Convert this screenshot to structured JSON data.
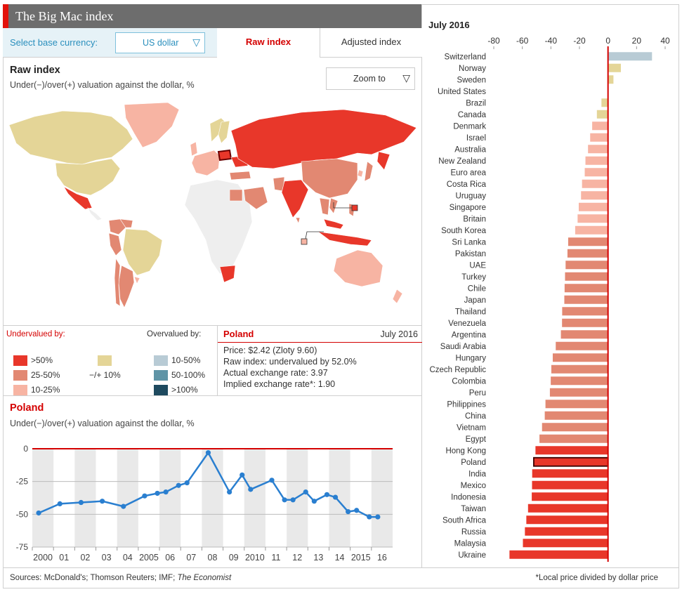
{
  "header": {
    "title": "The Big Mac index"
  },
  "currency": {
    "label": "Select base currency:",
    "value": "US dollar"
  },
  "tabs": [
    {
      "label": "Raw index",
      "active": true
    },
    {
      "label": "Adjusted index",
      "active": false
    }
  ],
  "map": {
    "title": "Raw index",
    "subtitle": "Under(−)/over(+) valuation against the dollar, %",
    "zoom_label": "Zoom to"
  },
  "legend": {
    "undervalued_label": "Undervalued by:",
    "overvalued_label": "Overvalued by:",
    "neutral_label": "−/+ 10%",
    "under": [
      {
        "label": ">50%",
        "color": "#e8372a"
      },
      {
        "label": "25-50%",
        "color": "#e28872"
      },
      {
        "label": "10-25%",
        "color": "#f7b4a3"
      }
    ],
    "neutral_color": "#e4d597",
    "over": [
      {
        "label": "10-50%",
        "color": "#b8cbd5"
      },
      {
        "label": "50-100%",
        "color": "#5f94a6"
      },
      {
        "label": ">100%",
        "color": "#1e4a5f"
      }
    ]
  },
  "info": {
    "country": "Poland",
    "date": "July 2016",
    "lines": [
      "Price: $2.42 (Zloty 9.60)",
      "Raw index: undervalued by 52.0%",
      "Actual exchange rate: 3.97",
      "Implied exchange rate*: 1.90"
    ]
  },
  "timeseries": {
    "title": "Poland",
    "subtitle": "Under(−)/over(+) valuation against the dollar, %"
  },
  "footer": {
    "sources_prefix": "Sources: McDonald's; Thomson Reuters; IMF; ",
    "sources_italic": "The Economist",
    "note": "*Local price divided by dollar price"
  },
  "colors": {
    "accent": "#e3120b",
    "line": "#2a7fd0",
    "highlight": "#d40000"
  },
  "chart_data": [
    {
      "type": "line",
      "title": "Poland",
      "ylim": [
        -75,
        0
      ],
      "yticks": [
        0,
        -25,
        -50,
        -75
      ],
      "xticks": [
        "2000",
        "01",
        "02",
        "03",
        "04",
        "2005",
        "06",
        "07",
        "08",
        "09",
        "2010",
        "11",
        "12",
        "13",
        "14",
        "2015",
        "16"
      ],
      "x": [
        2000.3,
        2001.3,
        2002.3,
        2003.3,
        2004.3,
        2005.3,
        2005.9,
        2006.3,
        2006.9,
        2007.3,
        2008.3,
        2009.3,
        2009.9,
        2010.3,
        2011.3,
        2011.9,
        2012.3,
        2012.9,
        2013.3,
        2013.9,
        2014.3,
        2014.9,
        2015.3,
        2015.9,
        2016.3
      ],
      "y": [
        -49,
        -42,
        -41,
        -40,
        -44,
        -36,
        -34,
        -33,
        -28,
        -26,
        -3,
        -33,
        -20,
        -31,
        -24,
        -39,
        -39,
        -33,
        -40,
        -35,
        -37,
        -48,
        -47,
        -52,
        -52
      ]
    },
    {
      "type": "bar",
      "title": "July 2016",
      "xlim": [
        -80,
        40
      ],
      "xticks": [
        -80,
        -60,
        -40,
        -20,
        0,
        20,
        40
      ],
      "highlight": "Poland",
      "categories": [
        "Switzerland",
        "Norway",
        "Sweden",
        "United States",
        "Brazil",
        "Canada",
        "Denmark",
        "Israel",
        "Australia",
        "New Zealand",
        "Euro area",
        "Costa Rica",
        "Uruguay",
        "Singapore",
        "Britain",
        "South Korea",
        "Sri Lanka",
        "Pakistan",
        "UAE",
        "Turkey",
        "Chile",
        "Japan",
        "Thailand",
        "Venezuela",
        "Argentina",
        "Saudi Arabia",
        "Hungary",
        "Czech Republic",
        "Colombia",
        "Peru",
        "Philippines",
        "China",
        "Vietnam",
        "Egypt",
        "Hong Kong",
        "Poland",
        "India",
        "Mexico",
        "Indonesia",
        "Taiwan",
        "South Africa",
        "Russia",
        "Malaysia",
        "Ukraine"
      ],
      "values": [
        30.8,
        9.0,
        3.8,
        0,
        -4.6,
        -7.8,
        -11.1,
        -12.5,
        -14.0,
        -15.8,
        -16.3,
        -18.2,
        -18.9,
        -20.5,
        -21.3,
        -23.0,
        -27.9,
        -28.4,
        -29.7,
        -30.1,
        -30.4,
        -30.6,
        -32.1,
        -32.2,
        -33.0,
        -36.6,
        -38.7,
        -39.7,
        -40.1,
        -40.7,
        -43.8,
        -44.3,
        -46.2,
        -48.0,
        -50.8,
        -52.0,
        -53.1,
        -53.2,
        -53.4,
        -56.0,
        -57.2,
        -58.2,
        -59.6,
        -69.0
      ]
    }
  ]
}
